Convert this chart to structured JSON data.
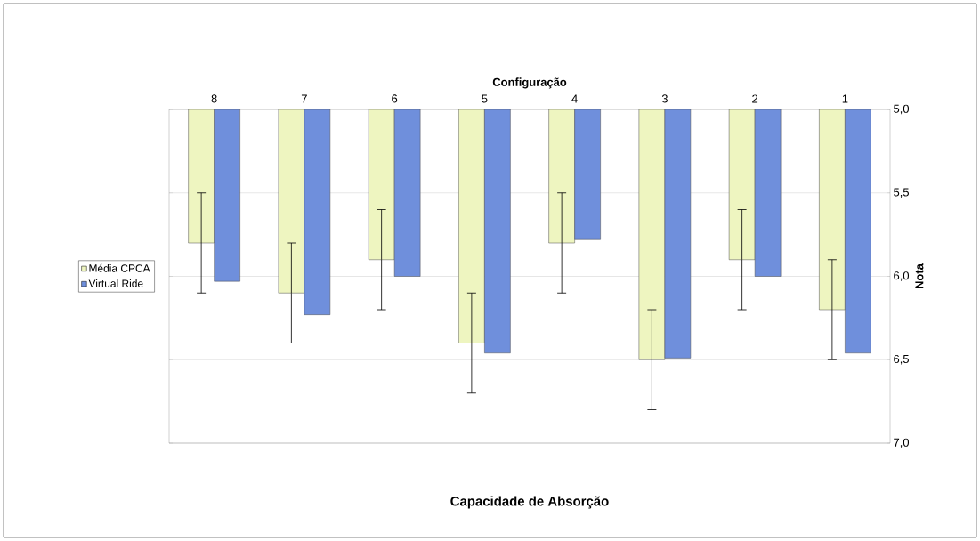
{
  "chart_data": {
    "type": "bar",
    "title": "Capacidade de Absorção",
    "xlabel": "Configuração",
    "ylabel": "Nota",
    "categories": [
      "8",
      "7",
      "6",
      "5",
      "4",
      "3",
      "2",
      "1"
    ],
    "series": [
      {
        "name": "Média CPCA",
        "color": "#eef5c0",
        "values": [
          5.8,
          6.1,
          5.9,
          6.4,
          5.8,
          6.5,
          5.9,
          6.2
        ],
        "errors": [
          0.3,
          0.3,
          0.3,
          0.3,
          0.3,
          0.3,
          0.3,
          0.3
        ]
      },
      {
        "name": "Virtual Ride",
        "color": "#6f8fdc",
        "values": [
          6.03,
          6.23,
          6.0,
          6.46,
          5.78,
          6.49,
          6.0,
          6.46
        ]
      }
    ],
    "ylim": [
      7.0,
      5.0
    ],
    "yticks": [
      {
        "value": 5.0,
        "label": "5,0"
      },
      {
        "value": 5.5,
        "label": "5,5"
      },
      {
        "value": 6.0,
        "label": "6,0"
      },
      {
        "value": 6.5,
        "label": "6,5"
      },
      {
        "value": 7.0,
        "label": "7,0"
      }
    ],
    "grid": "y",
    "legend": "left"
  }
}
